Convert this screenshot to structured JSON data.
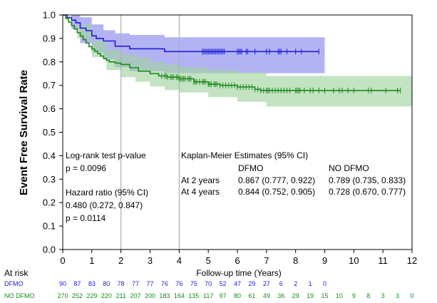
{
  "chart_data": {
    "type": "line",
    "title": "",
    "xlabel": "Follow-up time (Years)",
    "ylabel": "Event Free Survival Rate",
    "xlim": [
      0,
      12
    ],
    "ylim": [
      0,
      1.0
    ],
    "x_ticks": [
      0,
      1,
      2,
      3,
      4,
      5,
      6,
      7,
      8,
      9,
      10,
      11,
      12
    ],
    "y_ticks": [
      0.0,
      0.1,
      0.2,
      0.3,
      0.4,
      0.5,
      0.6,
      0.7,
      0.8,
      0.9,
      1.0
    ],
    "y_tick_labels": [
      "0.0",
      "0.1",
      "0.2",
      "0.3",
      "0.4",
      "0.5",
      "0.6",
      "0.7",
      "0.8",
      "0.9",
      "1.0"
    ],
    "reference_lines_x": [
      2,
      4
    ],
    "series": [
      {
        "name": "DFMO",
        "color": "#1f1fd6",
        "band_color": "#9a9af0",
        "step_x": [
          0,
          0.15,
          0.3,
          0.45,
          0.6,
          0.8,
          1.0,
          1.15,
          1.4,
          1.8,
          2.3,
          3.2,
          3.5
        ],
        "step_y": [
          1.0,
          0.989,
          0.978,
          0.967,
          0.944,
          0.933,
          0.911,
          0.9,
          0.889,
          0.867,
          0.856,
          0.856,
          0.844
        ],
        "end_x": 8.8,
        "ci_x": [
          0,
          0.3,
          0.6,
          1.0,
          1.4,
          1.8,
          2.3,
          3.5,
          9.0
        ],
        "ci_lower": [
          1.0,
          0.94,
          0.88,
          0.84,
          0.81,
          0.777,
          0.76,
          0.752,
          0.752
        ],
        "ci_upper": [
          1.0,
          1.0,
          0.99,
          0.96,
          0.935,
          0.922,
          0.915,
          0.905,
          0.905
        ],
        "censor_x": [
          4.8,
          4.85,
          4.9,
          4.95,
          5.0,
          5.05,
          5.1,
          5.15,
          5.2,
          5.25,
          5.3,
          5.35,
          5.4,
          5.45,
          5.5,
          5.55,
          6.0,
          6.05,
          6.1,
          6.15,
          6.3,
          6.35,
          6.6,
          7.0,
          7.1,
          7.4,
          7.45,
          7.5,
          7.7,
          8.0,
          8.2,
          8.8
        ]
      },
      {
        "name": "NO DFMO",
        "color": "#1a8a1a",
        "band_color": "#a3d4a3",
        "step_x": [
          0,
          0.1,
          0.2,
          0.3,
          0.4,
          0.5,
          0.6,
          0.7,
          0.8,
          0.9,
          1.0,
          1.1,
          1.2,
          1.3,
          1.4,
          1.5,
          1.6,
          1.8,
          2.0,
          2.3,
          2.6,
          3.0,
          3.3,
          3.6,
          4.0,
          4.5,
          5.0,
          5.4,
          6.0,
          6.6,
          6.8
        ],
        "step_y": [
          1.0,
          0.985,
          0.97,
          0.955,
          0.94,
          0.925,
          0.91,
          0.895,
          0.88,
          0.865,
          0.855,
          0.845,
          0.835,
          0.825,
          0.815,
          0.807,
          0.8,
          0.795,
          0.789,
          0.775,
          0.76,
          0.75,
          0.74,
          0.735,
          0.728,
          0.715,
          0.705,
          0.7,
          0.693,
          0.683,
          0.678
        ],
        "end_x": 11.6,
        "ci_x": [
          0,
          0.5,
          1.0,
          1.5,
          2.0,
          2.5,
          3.0,
          3.5,
          4.0,
          5.0,
          6.0,
          7.0,
          12.0
        ],
        "ci_lower": [
          1.0,
          0.9,
          0.82,
          0.765,
          0.735,
          0.715,
          0.695,
          0.68,
          0.67,
          0.65,
          0.63,
          0.61,
          0.61
        ],
        "ci_upper": [
          1.0,
          0.96,
          0.89,
          0.85,
          0.833,
          0.82,
          0.8,
          0.79,
          0.777,
          0.765,
          0.755,
          0.74,
          0.74
        ],
        "censor_x": [
          3.4,
          3.5,
          3.55,
          3.6,
          3.7,
          3.75,
          3.8,
          3.9,
          3.95,
          4.0,
          4.05,
          4.1,
          4.15,
          4.2,
          4.3,
          4.35,
          4.4,
          4.5,
          4.55,
          4.6,
          4.7,
          4.8,
          4.85,
          4.9,
          5.0,
          5.05,
          5.1,
          5.2,
          5.25,
          5.3,
          5.4,
          5.5,
          5.6,
          5.7,
          5.8,
          5.9,
          6.0,
          6.1,
          6.2,
          6.3,
          6.4,
          6.5,
          6.6,
          6.7,
          6.8,
          6.9,
          7.0,
          7.05,
          7.1,
          7.2,
          7.3,
          7.4,
          7.5,
          7.6,
          7.7,
          7.8,
          8.0,
          8.05,
          8.1,
          8.15,
          8.3,
          8.5,
          8.6,
          8.8,
          9.0,
          9.3,
          9.5,
          9.6,
          9.8,
          10.0,
          10.5,
          10.6,
          11.1,
          11.5,
          11.6
        ]
      }
    ],
    "annotations": {
      "logrank_label": "Log-rank test p-value",
      "logrank_p": "p = 0.0096",
      "hazard_label": "Hazard ratio (95% CI)",
      "hazard_value": "0.480 (0.272, 0.847)",
      "hazard_p": "p = 0.0114",
      "km_label": "Kaplan-Meier Estimates (95% CI)",
      "km_col_dfmo": "DFMO",
      "km_col_nodfmo": "NO DFMO",
      "row_2y_label": "At 2 years",
      "row_2y_dfmo": "0.867 (0.777, 0.922)",
      "row_2y_nodfmo": "0.789 (0.735, 0.833)",
      "row_4y_label": "At 4 years",
      "row_4y_dfmo": "0.844 (0.752, 0.905)",
      "row_4y_nodfmo": "0.728 (0.670, 0.777)"
    },
    "at_risk": {
      "title": "At risk",
      "x": [
        0,
        0.5,
        1,
        1.5,
        2,
        2.5,
        3,
        3.5,
        4,
        4.5,
        5,
        5.5,
        6,
        6.5,
        7,
        7.5,
        8,
        8.5,
        9,
        9.5,
        10,
        10.5,
        11,
        11.5,
        12
      ],
      "groups": [
        {
          "name": "DFMO",
          "color": "#1f1fd6",
          "counts": [
            "90",
            "87",
            "83",
            "80",
            "78",
            "77",
            "77",
            "76",
            "76",
            "75",
            "70",
            "52",
            "47",
            "29",
            "27",
            "6",
            "2",
            "1",
            "0"
          ]
        },
        {
          "name": "NO DFMO",
          "color": "#1a8a1a",
          "counts": [
            "270",
            "252",
            "229",
            "220",
            "211",
            "207",
            "200",
            "183",
            "164",
            "135",
            "117",
            "97",
            "80",
            "61",
            "49",
            "36",
            "29",
            "19",
            "15",
            "10",
            "9",
            "8",
            "3",
            "3",
            "0"
          ]
        }
      ]
    }
  }
}
